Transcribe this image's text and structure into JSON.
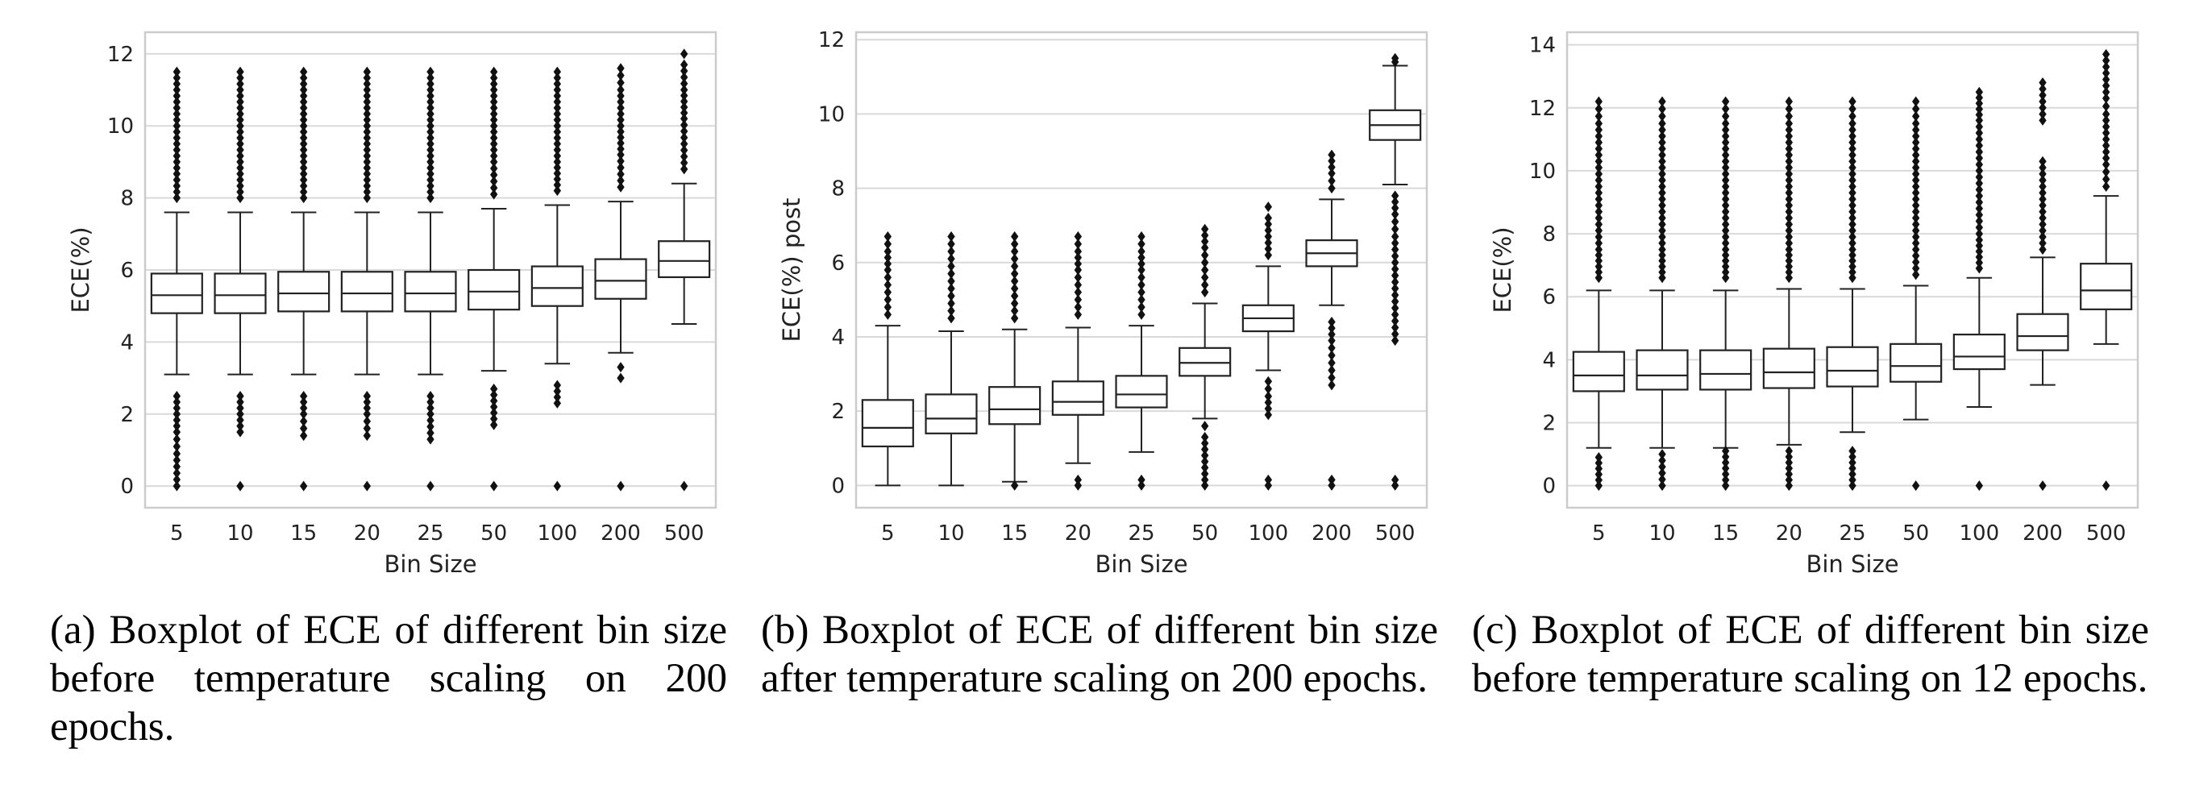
{
  "chart_data": [
    {
      "type": "box",
      "xlabel": "Bin Size",
      "ylabel": "ECE(%)",
      "ylim": [
        -0.6,
        12.6
      ],
      "yticks": [
        0,
        2,
        4,
        6,
        8,
        10,
        12
      ],
      "grid": "horizontal",
      "categories": [
        "5",
        "10",
        "15",
        "20",
        "25",
        "50",
        "100",
        "200",
        "500"
      ],
      "boxes": [
        {
          "whislo": 3.1,
          "q1": 4.8,
          "med": 5.3,
          "q3": 5.9,
          "whishi": 7.6,
          "fliers_low": [
            0.0,
            0.9,
            1.5,
            2.0,
            2.5
          ],
          "fliers_high": [
            8.0,
            9.0,
            10.0,
            11.0,
            11.5
          ]
        },
        {
          "whislo": 3.1,
          "q1": 4.8,
          "med": 5.3,
          "q3": 5.9,
          "whishi": 7.6,
          "fliers_low": [
            0.0,
            1.5,
            2.0,
            2.5
          ],
          "fliers_high": [
            8.0,
            9.0,
            10.0,
            11.0,
            11.5
          ]
        },
        {
          "whislo": 3.1,
          "q1": 4.85,
          "med": 5.35,
          "q3": 5.95,
          "whishi": 7.6,
          "fliers_low": [
            0.0,
            1.4,
            2.0,
            2.5
          ],
          "fliers_high": [
            8.0,
            9.0,
            10.0,
            11.0,
            11.5
          ]
        },
        {
          "whislo": 3.1,
          "q1": 4.85,
          "med": 5.35,
          "q3": 5.95,
          "whishi": 7.6,
          "fliers_low": [
            0.0,
            1.4,
            2.0,
            2.5
          ],
          "fliers_high": [
            8.0,
            9.0,
            10.0,
            11.0,
            11.5
          ]
        },
        {
          "whislo": 3.1,
          "q1": 4.85,
          "med": 5.35,
          "q3": 5.95,
          "whishi": 7.6,
          "fliers_low": [
            0.0,
            1.3,
            2.0,
            2.5
          ],
          "fliers_high": [
            8.0,
            9.0,
            10.0,
            11.0,
            11.5
          ]
        },
        {
          "whislo": 3.2,
          "q1": 4.9,
          "med": 5.4,
          "q3": 6.0,
          "whishi": 7.7,
          "fliers_low": [
            0.0,
            1.7,
            2.2,
            2.7
          ],
          "fliers_high": [
            8.1,
            9.0,
            10.0,
            11.0,
            11.5
          ]
        },
        {
          "whislo": 3.4,
          "q1": 5.0,
          "med": 5.5,
          "q3": 6.1,
          "whishi": 7.8,
          "fliers_low": [
            0.0,
            2.3,
            2.8
          ],
          "fliers_high": [
            8.2,
            9.0,
            10.0,
            11.0,
            11.5
          ]
        },
        {
          "whislo": 3.7,
          "q1": 5.2,
          "med": 5.7,
          "q3": 6.3,
          "whishi": 7.9,
          "fliers_low": [
            0.0,
            3.0,
            3.3
          ],
          "fliers_high": [
            8.3,
            9.2,
            10.0,
            11.0,
            11.6
          ]
        },
        {
          "whislo": 4.5,
          "q1": 5.8,
          "med": 6.25,
          "q3": 6.8,
          "whishi": 8.4,
          "fliers_low": [
            0.0
          ],
          "fliers_high": [
            8.8,
            9.5,
            10.2,
            11.0,
            11.7,
            12.0
          ]
        }
      ]
    },
    {
      "type": "box",
      "xlabel": "Bin Size",
      "ylabel": "ECE(%) post",
      "ylim": [
        -0.6,
        12.2
      ],
      "yticks": [
        0,
        2,
        4,
        6,
        8,
        10,
        12
      ],
      "grid": "horizontal",
      "categories": [
        "5",
        "10",
        "15",
        "20",
        "25",
        "50",
        "100",
        "200",
        "500"
      ],
      "boxes": [
        {
          "whislo": 0.0,
          "q1": 1.05,
          "med": 1.55,
          "q3": 2.3,
          "whishi": 4.3,
          "fliers_low": [],
          "fliers_high": [
            4.6,
            5.2,
            5.8,
            6.3,
            6.7
          ]
        },
        {
          "whislo": 0.0,
          "q1": 1.4,
          "med": 1.8,
          "q3": 2.45,
          "whishi": 4.15,
          "fliers_low": [],
          "fliers_high": [
            4.5,
            5.1,
            5.7,
            6.3,
            6.7
          ]
        },
        {
          "whislo": 0.1,
          "q1": 1.65,
          "med": 2.05,
          "q3": 2.65,
          "whishi": 4.2,
          "fliers_low": [
            0.0
          ],
          "fliers_high": [
            4.5,
            5.1,
            5.7,
            6.3,
            6.7
          ]
        },
        {
          "whislo": 0.6,
          "q1": 1.9,
          "med": 2.25,
          "q3": 2.8,
          "whishi": 4.25,
          "fliers_low": [
            0.0,
            0.15
          ],
          "fliers_high": [
            4.6,
            5.2,
            5.8,
            6.3,
            6.7
          ]
        },
        {
          "whislo": 0.9,
          "q1": 2.1,
          "med": 2.45,
          "q3": 2.95,
          "whishi": 4.3,
          "fliers_low": [
            0.0,
            0.15
          ],
          "fliers_high": [
            4.6,
            5.2,
            5.8,
            6.3,
            6.7
          ]
        },
        {
          "whislo": 1.8,
          "q1": 2.95,
          "med": 3.3,
          "q3": 3.7,
          "whishi": 4.9,
          "fliers_low": [
            0.0,
            0.15,
            1.3,
            1.6
          ],
          "fliers_high": [
            5.2,
            5.8,
            6.4,
            6.9
          ]
        },
        {
          "whislo": 3.1,
          "q1": 4.15,
          "med": 4.5,
          "q3": 4.85,
          "whishi": 5.9,
          "fliers_low": [
            0.0,
            0.15,
            1.9,
            2.4,
            2.8
          ],
          "fliers_high": [
            6.2,
            6.7,
            7.2,
            7.5
          ]
        },
        {
          "whislo": 4.85,
          "q1": 5.9,
          "med": 6.25,
          "q3": 6.6,
          "whishi": 7.7,
          "fliers_low": [
            0.0,
            0.15,
            2.7,
            3.3,
            3.9,
            4.4
          ],
          "fliers_high": [
            8.0,
            8.4,
            8.9
          ]
        },
        {
          "whislo": 8.1,
          "q1": 9.3,
          "med": 9.7,
          "q3": 10.1,
          "whishi": 11.3,
          "fliers_low": [
            0.0,
            0.15,
            3.9,
            4.6,
            5.3,
            6.0,
            6.7,
            7.3,
            7.8
          ],
          "fliers_high": [
            11.4,
            11.5
          ]
        }
      ]
    },
    {
      "type": "box",
      "xlabel": "Bin Size",
      "ylabel": "ECE(%)",
      "ylim": [
        -0.7,
        14.4
      ],
      "yticks": [
        0,
        2,
        4,
        6,
        8,
        10,
        12,
        14
      ],
      "grid": "horizontal",
      "categories": [
        "5",
        "10",
        "15",
        "20",
        "25",
        "50",
        "100",
        "200",
        "500"
      ],
      "boxes": [
        {
          "whislo": 1.2,
          "q1": 3.0,
          "med": 3.5,
          "q3": 4.25,
          "whishi": 6.2,
          "fliers_low": [
            0.0,
            0.9
          ],
          "fliers_high": [
            6.6,
            7.5,
            8.5,
            9.5,
            10.5,
            11.5,
            12.2
          ]
        },
        {
          "whislo": 1.2,
          "q1": 3.05,
          "med": 3.5,
          "q3": 4.3,
          "whishi": 6.2,
          "fliers_low": [
            0.0,
            1.0
          ],
          "fliers_high": [
            6.6,
            7.5,
            8.5,
            9.5,
            10.5,
            11.5,
            12.2
          ]
        },
        {
          "whislo": 1.2,
          "q1": 3.05,
          "med": 3.55,
          "q3": 4.3,
          "whishi": 6.2,
          "fliers_low": [
            0.0,
            1.1
          ],
          "fliers_high": [
            6.6,
            7.5,
            8.5,
            9.5,
            10.5,
            11.5,
            12.2
          ]
        },
        {
          "whislo": 1.3,
          "q1": 3.1,
          "med": 3.6,
          "q3": 4.35,
          "whishi": 6.25,
          "fliers_low": [
            0.0,
            1.1
          ],
          "fliers_high": [
            6.6,
            7.5,
            8.5,
            9.5,
            10.5,
            11.5,
            12.2
          ]
        },
        {
          "whislo": 1.7,
          "q1": 3.15,
          "med": 3.65,
          "q3": 4.4,
          "whishi": 6.25,
          "fliers_low": [
            0.0,
            1.1
          ],
          "fliers_high": [
            6.6,
            7.5,
            8.5,
            9.5,
            10.5,
            11.5,
            12.2
          ]
        },
        {
          "whislo": 2.1,
          "q1": 3.3,
          "med": 3.8,
          "q3": 4.5,
          "whishi": 6.35,
          "fliers_low": [
            0.0
          ],
          "fliers_high": [
            6.7,
            7.5,
            8.5,
            9.5,
            10.5,
            11.5,
            12.2
          ]
        },
        {
          "whislo": 2.5,
          "q1": 3.7,
          "med": 4.1,
          "q3": 4.8,
          "whishi": 6.6,
          "fliers_low": [
            0.0
          ],
          "fliers_high": [
            6.9,
            7.8,
            8.8,
            9.8,
            10.8,
            11.6,
            12.5
          ]
        },
        {
          "whislo": 3.2,
          "q1": 4.3,
          "med": 4.75,
          "q3": 5.45,
          "whishi": 7.25,
          "fliers_low": [
            0.0
          ],
          "fliers_high": [
            7.5,
            8.3,
            9.3,
            10.3,
            11.6,
            12.0,
            12.8
          ]
        },
        {
          "whislo": 4.5,
          "q1": 5.6,
          "med": 6.2,
          "q3": 7.05,
          "whishi": 9.2,
          "fliers_low": [
            0.0
          ],
          "fliers_high": [
            9.5,
            10.2,
            11.0,
            11.8,
            12.3,
            12.7,
            13.7
          ]
        }
      ]
    }
  ],
  "captions": [
    "(a) Boxplot of ECE of different bin size before temperature scaling on 200 epochs.",
    "(b) Boxplot of ECE of different bin size after temperature scaling on 200 epochs.",
    "(c) Boxplot of ECE of different bin size before temperature scaling on 12 epochs."
  ]
}
